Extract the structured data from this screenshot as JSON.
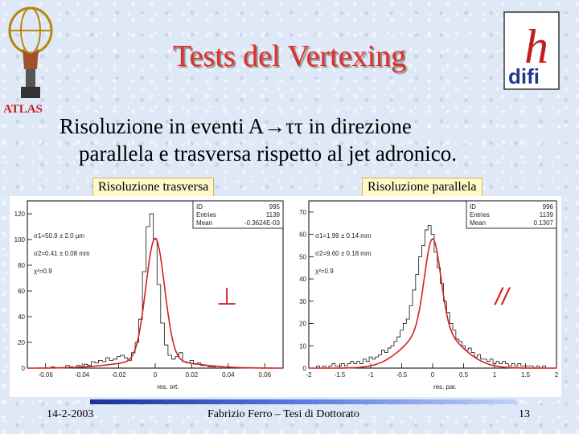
{
  "slide": {
    "title": "Tests del Vertexing",
    "atlas_label": "ATLAS",
    "subtitle_line1": "Risoluzione in eventi A→ττ in direzione",
    "subtitle_line2": "parallela e trasversa rispetto al jet adronico.",
    "tag_trasversa": "Risoluzione trasversa",
    "tag_parallela": "Risoluzione parallela",
    "footer_date": "14-2-2003",
    "footer_author": "Fabrizio Ferro – Tesi di Dottorato",
    "footer_page": "13",
    "logo_text": "difi",
    "logo_letter": "h"
  },
  "chart_data": [
    {
      "type": "histogram",
      "xlabel": "res. ort.",
      "xlim": [
        -0.07,
        0.07
      ],
      "ylim": [
        0,
        130
      ],
      "x_ticks": [
        "-0.06",
        "-0.04",
        "-0.02",
        "0",
        "0.02",
        "0.04",
        "0.06"
      ],
      "y_ticks": [
        "0",
        "20",
        "40",
        "60",
        "80",
        "100",
        "120"
      ],
      "stats": [
        [
          "ID",
          "995"
        ],
        [
          "Entries",
          "1139"
        ],
        [
          "Mean",
          "-0.3624E-03"
        ]
      ],
      "annotations": [
        "σ1=50.9 ± 2.0 μm",
        "σ2=0.41 ± 0.08 mm",
        "χ²=0.9"
      ],
      "symbol": "⊥",
      "fit": {
        "mu": 0.0,
        "s1": 0.0051,
        "a1": 95,
        "s2": 0.02,
        "a2": 6
      },
      "bins_x": [
        -0.064,
        -0.062,
        -0.06,
        -0.058,
        -0.056,
        -0.054,
        -0.052,
        -0.05,
        -0.048,
        -0.046,
        -0.044,
        -0.042,
        -0.04,
        -0.038,
        -0.036,
        -0.034,
        -0.032,
        -0.03,
        -0.028,
        -0.026,
        -0.024,
        -0.022,
        -0.02,
        -0.018,
        -0.016,
        -0.014,
        -0.012,
        -0.01,
        -0.008,
        -0.006,
        -0.004,
        -0.002,
        0.0,
        0.002,
        0.004,
        0.006,
        0.008,
        0.01,
        0.012,
        0.014,
        0.016,
        0.018,
        0.02,
        0.022,
        0.024,
        0.026,
        0.028,
        0.03,
        0.032,
        0.034,
        0.036,
        0.038,
        0.04,
        0.042,
        0.044,
        0.046,
        0.048,
        0.05,
        0.052,
        0.054,
        0.056,
        0.058,
        0.06,
        0.062,
        0.064
      ],
      "counts": [
        0,
        0,
        0,
        0,
        1,
        0,
        0,
        0,
        2,
        1,
        0,
        2,
        1,
        3,
        2,
        5,
        4,
        6,
        5,
        8,
        6,
        7,
        9,
        10,
        8,
        6,
        12,
        20,
        38,
        75,
        110,
        120,
        100,
        65,
        35,
        18,
        10,
        7,
        9,
        12,
        5,
        4,
        6,
        3,
        4,
        2,
        2,
        1,
        1,
        0,
        1,
        0,
        0,
        0,
        0,
        0,
        0,
        0,
        0,
        0,
        0,
        0,
        0,
        0,
        0
      ]
    },
    {
      "type": "histogram",
      "xlabel": "res. par.",
      "xlim": [
        -2,
        2
      ],
      "ylim": [
        0,
        75
      ],
      "x_ticks": [
        "-2",
        "-1.5",
        "-1",
        "-0.5",
        "0",
        "0.5",
        "1",
        "1.5",
        "2"
      ],
      "y_ticks": [
        "0",
        "10",
        "20",
        "30",
        "40",
        "50",
        "60",
        "70"
      ],
      "stats": [
        [
          "ID",
          "996"
        ],
        [
          "Entries",
          "1139"
        ],
        [
          "Mean",
          "0.1307"
        ]
      ],
      "annotations": [
        "σ1=1.99 ± 0.14 mm",
        "σ2=9.60 ± 0.18 mm",
        "χ²=0.9"
      ],
      "symbol": "//",
      "fit": {
        "mu": 0.0,
        "s1": 0.13,
        "a1": 40,
        "s2": 0.42,
        "a2": 18
      },
      "bins_x": [
        -1.95,
        -1.9,
        -1.85,
        -1.8,
        -1.75,
        -1.7,
        -1.65,
        -1.6,
        -1.55,
        -1.5,
        -1.45,
        -1.4,
        -1.35,
        -1.3,
        -1.25,
        -1.2,
        -1.15,
        -1.1,
        -1.05,
        -1.0,
        -0.95,
        -0.9,
        -0.85,
        -0.8,
        -0.75,
        -0.7,
        -0.65,
        -0.6,
        -0.55,
        -0.5,
        -0.45,
        -0.4,
        -0.35,
        -0.3,
        -0.25,
        -0.2,
        -0.15,
        -0.1,
        -0.05,
        0.0,
        0.05,
        0.1,
        0.15,
        0.2,
        0.25,
        0.3,
        0.35,
        0.4,
        0.45,
        0.5,
        0.55,
        0.6,
        0.65,
        0.7,
        0.75,
        0.8,
        0.85,
        0.9,
        0.95,
        1.0,
        1.05,
        1.1,
        1.15,
        1.2,
        1.25,
        1.3,
        1.35,
        1.4,
        1.45,
        1.5,
        1.55,
        1.6,
        1.65,
        1.7,
        1.75,
        1.8,
        1.85,
        1.9,
        1.95
      ],
      "counts": [
        0,
        0,
        1,
        0,
        1,
        0,
        1,
        2,
        1,
        1,
        2,
        1,
        2,
        3,
        2,
        3,
        2,
        4,
        3,
        5,
        4,
        5,
        6,
        8,
        7,
        9,
        10,
        12,
        14,
        17,
        20,
        22,
        28,
        35,
        42,
        50,
        55,
        62,
        64,
        60,
        52,
        45,
        38,
        30,
        25,
        20,
        17,
        13,
        12,
        10,
        8,
        9,
        7,
        5,
        6,
        4,
        4,
        3,
        4,
        2,
        3,
        2,
        3,
        2,
        1,
        2,
        1,
        2,
        1,
        1,
        1,
        1,
        0,
        1,
        0,
        1,
        0,
        0,
        0
      ]
    }
  ]
}
